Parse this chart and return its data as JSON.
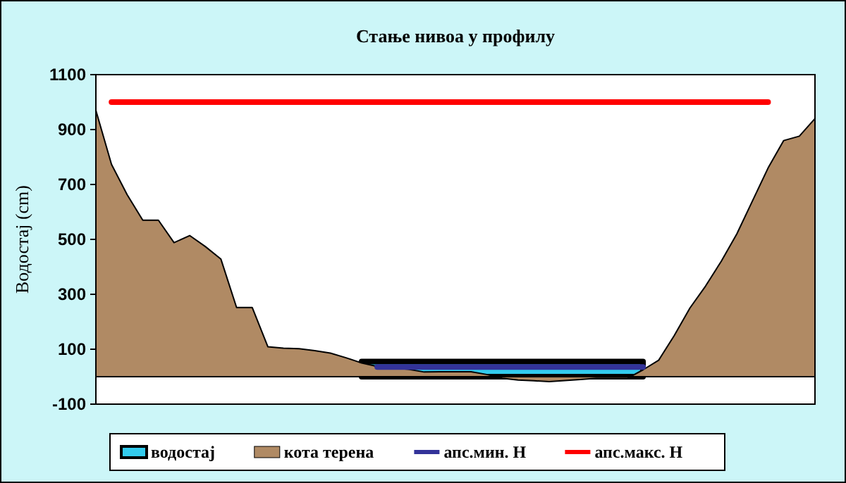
{
  "chart_data": {
    "type": "area",
    "title": "Стање нивоа у профилу",
    "ylabel": "Водостај (cm)",
    "categories": [
      null,
      null,
      null,
      null,
      null,
      null,
      null,
      null,
      null,
      null,
      null,
      null,
      null,
      null,
      null,
      null,
      null,
      null,
      null,
      null,
      null,
      null,
      null,
      null,
      null,
      null,
      null,
      null,
      null,
      null,
      null,
      null,
      null,
      null,
      null,
      null,
      null,
      null,
      null,
      null,
      null,
      null,
      null,
      null,
      null,
      null,
      null
    ],
    "ylim": [
      -100,
      1100
    ],
    "yticks": [
      -100,
      100,
      300,
      500,
      700,
      900,
      1100
    ],
    "grid": false,
    "legend": "bottom",
    "series": [
      {
        "name": "водостај",
        "color": "#33ccee",
        "values": [
          null,
          null,
          null,
          null,
          null,
          null,
          null,
          null,
          null,
          null,
          null,
          null,
          null,
          null,
          null,
          null,
          null,
          55,
          55,
          55,
          55,
          55,
          55,
          55,
          55,
          55,
          55,
          55,
          55,
          55,
          55,
          55,
          55,
          55,
          55,
          55,
          null,
          null,
          null,
          null,
          null,
          null,
          null,
          null,
          null,
          null,
          null
        ]
      },
      {
        "name": "кота терена",
        "color": "#b08a64",
        "values": [
          970,
          773,
          663,
          570,
          570,
          488,
          514,
          474,
          428,
          252,
          252,
          109,
          104,
          102,
          95,
          86,
          69,
          50,
          37,
          32,
          27,
          17,
          18,
          18,
          18,
          8,
          -6,
          -12,
          -15,
          -18,
          -14,
          -10,
          -6,
          -6,
          -6,
          25,
          60,
          150,
          250,
          330,
          420,
          520,
          640,
          760,
          860,
          876,
          940
        ]
      },
      {
        "name": "апс.мин. H",
        "type": "line",
        "color": "#333399",
        "values": [
          null,
          null,
          null,
          null,
          null,
          null,
          null,
          null,
          null,
          null,
          null,
          null,
          null,
          null,
          null,
          null,
          null,
          null,
          35,
          35,
          35,
          35,
          35,
          35,
          35,
          35,
          35,
          35,
          35,
          35,
          35,
          35,
          35,
          35,
          35,
          35,
          null,
          null,
          null,
          null,
          null,
          null,
          null,
          null,
          null,
          null,
          null
        ]
      },
      {
        "name": "апс.макс. H",
        "type": "line",
        "color": "#ff0000",
        "values": [
          null,
          1000,
          1000,
          1000,
          1000,
          1000,
          1000,
          1000,
          1000,
          1000,
          1000,
          1000,
          1000,
          1000,
          1000,
          1000,
          1000,
          1000,
          1000,
          1000,
          1000,
          1000,
          1000,
          1000,
          1000,
          1000,
          1000,
          1000,
          1000,
          1000,
          1000,
          1000,
          1000,
          1000,
          1000,
          1000,
          1000,
          1000,
          1000,
          1000,
          1000,
          1000,
          1000,
          1000,
          null,
          null,
          null
        ]
      }
    ]
  }
}
